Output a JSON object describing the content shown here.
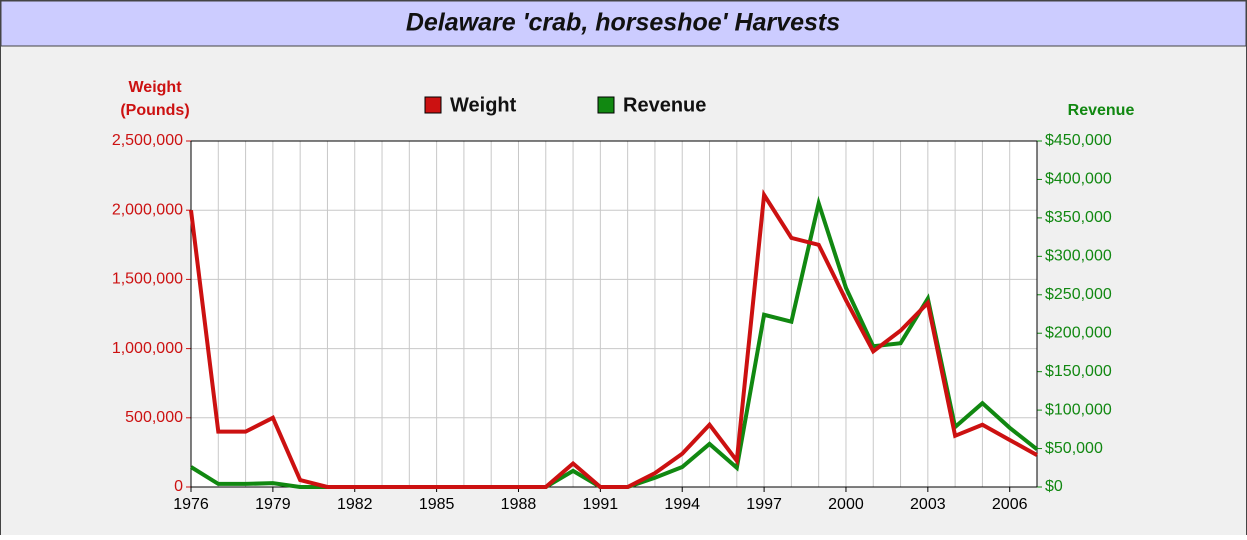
{
  "chart_data": {
    "type": "line",
    "title": "Delaware 'crab, horseshoe' Harvests",
    "ylabel": [
      "Weight",
      "(Pounds)"
    ],
    "y2label": "Revenue",
    "x": [
      1976,
      1977,
      1978,
      1979,
      1980,
      1981,
      1982,
      1983,
      1984,
      1985,
      1986,
      1987,
      1988,
      1989,
      1990,
      1991,
      1992,
      1993,
      1994,
      1995,
      1996,
      1997,
      1998,
      1999,
      2000,
      2001,
      2002,
      2003,
      2004,
      2005,
      2006,
      2007
    ],
    "xlim": [
      1976,
      2007
    ],
    "xticks": [
      1976,
      1979,
      1982,
      1985,
      1988,
      1991,
      1994,
      1997,
      2000,
      2003,
      2006
    ],
    "ylim": [
      0,
      2500000
    ],
    "yticks": [
      {
        "value": 0,
        "label": "0"
      },
      {
        "value": 500000,
        "label": "500,000"
      },
      {
        "value": 1000000,
        "label": "1,000,000"
      },
      {
        "value": 1500000,
        "label": "1,500,000"
      },
      {
        "value": 2000000,
        "label": "2,000,000"
      },
      {
        "value": 2500000,
        "label": "2,500,000"
      }
    ],
    "y2lim": [
      0,
      450000
    ],
    "y2ticks": [
      {
        "value": 0,
        "label": "$0"
      },
      {
        "value": 50000,
        "label": "$50,000"
      },
      {
        "value": 100000,
        "label": "$100,000"
      },
      {
        "value": 150000,
        "label": "$150,000"
      },
      {
        "value": 200000,
        "label": "$200,000"
      },
      {
        "value": 250000,
        "label": "$250,000"
      },
      {
        "value": 300000,
        "label": "$300,000"
      },
      {
        "value": 350000,
        "label": "$350,000"
      },
      {
        "value": 400000,
        "label": "$400,000"
      },
      {
        "value": 450000,
        "label": "$450,000"
      }
    ],
    "grid": true,
    "series": [
      {
        "name": "Weight",
        "color": "#cc1111",
        "values": [
          2000000,
          400000,
          400000,
          500000,
          50000,
          0,
          0,
          0,
          0,
          0,
          0,
          0,
          0,
          0,
          170000,
          0,
          0,
          100000,
          240000,
          450000,
          190000,
          2110000,
          1800000,
          1750000,
          1350000,
          980000,
          1130000,
          1330000,
          370000,
          450000,
          340000,
          230000
        ]
      },
      {
        "name": "Revenue",
        "color": "#118811",
        "axis": "y2",
        "values": [
          26000,
          4000,
          4000,
          5000,
          0,
          0,
          0,
          0,
          0,
          0,
          0,
          0,
          0,
          0,
          21000,
          0,
          0,
          12000,
          26000,
          56000,
          25000,
          224000,
          215000,
          369000,
          259000,
          183000,
          187000,
          245000,
          78000,
          109000,
          77000,
          49000
        ]
      }
    ]
  }
}
